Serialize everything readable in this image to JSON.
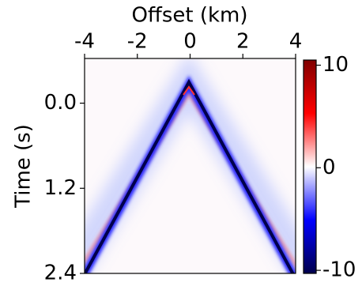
{
  "chart_data": {
    "type": "image",
    "xlabel": "Offset (km)",
    "ylabel": "Time (s)",
    "xlim": [
      -4,
      4
    ],
    "xticks": [
      -4,
      -2,
      0,
      2,
      4
    ],
    "ylim": [
      -0.63,
      2.4
    ],
    "y_inverted": true,
    "yticks": [
      {
        "value": 0,
        "label": "0.0"
      },
      1.2,
      2.4
    ],
    "colormap": "seismic",
    "clim": [
      -10.3,
      10.5
    ],
    "cticks": [
      -10,
      0,
      10
    ]
  }
}
